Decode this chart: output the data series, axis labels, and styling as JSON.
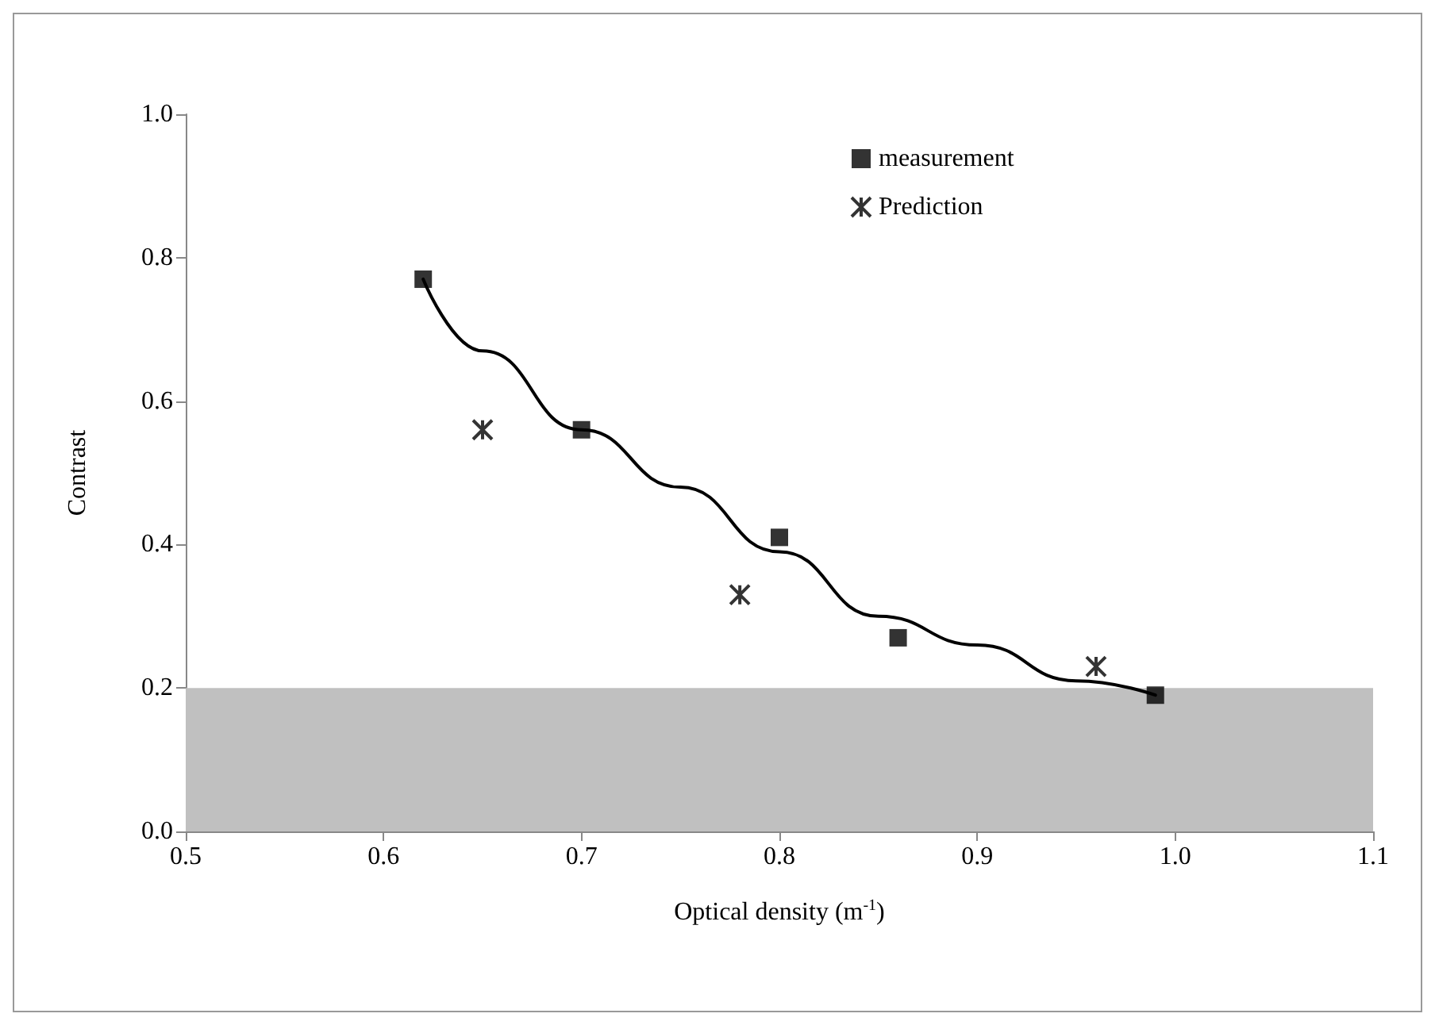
{
  "chart_data": {
    "type": "scatter",
    "xlabel": "Optical density (m$^{-1}$)",
    "ylabel": "Contrast",
    "xlim": [
      0.5,
      1.1
    ],
    "ylim": [
      0,
      1.0
    ],
    "xticks": [
      0.5,
      0.6,
      0.7,
      0.8,
      0.9,
      {
        "value": 1.0,
        "label": "1.0"
      },
      1.1
    ],
    "yticks": [
      {
        "value": 0,
        "label": "0.0"
      },
      0.2,
      0.4,
      0.6,
      0.8,
      {
        "value": 1.0,
        "label": "1.0"
      }
    ],
    "grid": false,
    "legend": "top right",
    "series": [
      {
        "name": "measurement",
        "marker": "square",
        "color": "#000000",
        "x": [
          0.62,
          0.7,
          0.8,
          0.86,
          0.99
        ],
        "values": [
          0.77,
          0.56,
          0.41,
          0.27,
          0.19
        ]
      },
      {
        "name": "Prediction",
        "marker": "cross",
        "color": "#000000",
        "x": [
          0.65,
          0.78,
          0.96
        ],
        "values": [
          0.56,
          0.33,
          0.23
        ]
      },
      {
        "type": "line",
        "marker": "none",
        "line_style": "solid",
        "color": "#000000",
        "x": [
          0.62,
          0.65,
          0.7,
          0.75,
          0.8,
          0.85,
          0.9,
          0.95,
          0.99
        ],
        "values": [
          0.77,
          0.67,
          0.56,
          0.48,
          0.39,
          0.3,
          0.26,
          0.21,
          0.19
        ]
      }
    ],
    "bands": [
      {
        "axis": "y",
        "from": 0,
        "to": 0.2,
        "color": "#c0c0c0"
      }
    ]
  }
}
